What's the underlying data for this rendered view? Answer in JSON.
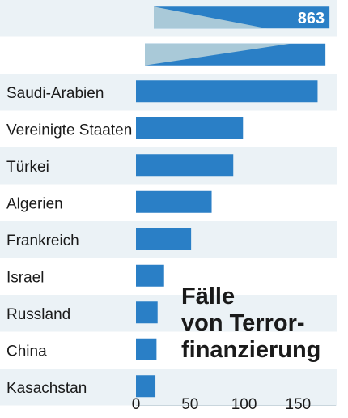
{
  "chart_data": {
    "type": "bar",
    "orientation": "horizontal",
    "title_lines": [
      "Fälle",
      "von Terror-",
      "finanzierung"
    ],
    "categories": [
      "",
      "",
      "Saudi-Arabien",
      "Vereinigte Staaten",
      "Türkei",
      "Algerien",
      "Frankreich",
      "Israel",
      "Russland",
      "China",
      "Kasachstan"
    ],
    "values": [
      863,
      null,
      168,
      99,
      90,
      70,
      51,
      26,
      20,
      19,
      18
    ],
    "data_labels": [
      "863",
      "",
      "",
      "",
      "",
      "",
      "",
      "",
      "",
      "",
      ""
    ],
    "truncated_bars": [
      0,
      1
    ],
    "xlim": [
      0,
      185
    ],
    "xticks": [
      0,
      50,
      100,
      150
    ],
    "xtick_labels": [
      "0",
      "50",
      "100",
      "150"
    ],
    "grid": "alternating row shading",
    "colors": {
      "bar": "#2a7fc6",
      "bar_break": "#a9c9d8",
      "row_shade": "#ebf2f6",
      "text": "#1a1a1a",
      "value_label": "#ffffff"
    }
  }
}
